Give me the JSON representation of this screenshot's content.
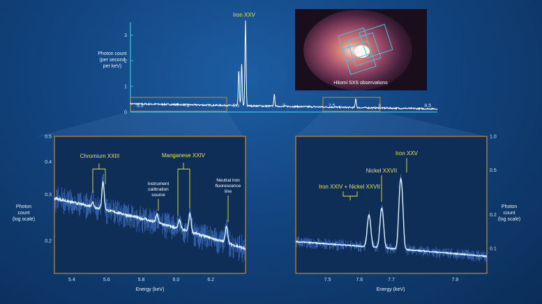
{
  "inset": {
    "caption": "Hitomi SXS observations"
  },
  "chart_data": [
    {
      "type": "line",
      "panel": "overview",
      "ylabel_lines": [
        "Photon count",
        "(per second",
        "per keV)"
      ],
      "annotation": "Iron XXV",
      "x_ticks": [
        "5.5",
        "6",
        "6.5",
        "7",
        "7.5",
        "8",
        "8.5"
      ],
      "y_ticks": [
        "0",
        "1",
        "2",
        "3"
      ],
      "xlim": [
        5.4,
        8.6
      ],
      "ylim": [
        0,
        3.5
      ],
      "peaks": [
        {
          "x": 6.53,
          "y": 1.4
        },
        {
          "x": 6.56,
          "y": 1.6
        },
        {
          "x": 6.6,
          "y": 3.3
        },
        {
          "x": 6.9,
          "y": 0.45
        },
        {
          "x": 7.75,
          "y": 0.35
        }
      ],
      "continuum": {
        "x": [
          5.4,
          8.6
        ],
        "y": [
          0.32,
          0.12
        ]
      },
      "zoom_boxes": [
        [
          5.4,
          6.4
        ],
        [
          7.4,
          8.0
        ]
      ]
    },
    {
      "type": "line",
      "panel": "zoom-left",
      "xlabel": "Energy (keV)",
      "ylabel_lines": [
        "Photon",
        "count",
        "(log scale)"
      ],
      "scale": "log",
      "xlim": [
        5.3,
        6.4
      ],
      "ylim": [
        0.15,
        0.5
      ],
      "x_ticks": [
        "5.4",
        "5.6",
        "5.8",
        "6.0",
        "6.2"
      ],
      "y_ticks": [
        "0.5",
        "0.4",
        "0.3",
        "0.2"
      ],
      "continuum": {
        "x": [
          5.3,
          6.4
        ],
        "y": [
          0.29,
          0.186
        ]
      },
      "lines": [
        {
          "x": 5.52,
          "peak": 0.28
        },
        {
          "x": 5.58,
          "peak": 0.335
        },
        {
          "x": 5.82,
          "peak": 0.243
        },
        {
          "x": 5.89,
          "peak": 0.252
        },
        {
          "x": 6.02,
          "peak": 0.24
        },
        {
          "x": 6.08,
          "peak": 0.255
        },
        {
          "x": 6.29,
          "peak": 0.228
        }
      ],
      "annotations": [
        "Chromium XXIII",
        "Manganese XXIV"
      ],
      "labels_multiline": [
        [
          "Instrument",
          "calibration",
          "source"
        ],
        [
          "Neutral iron",
          "fluorescence",
          "line"
        ]
      ]
    },
    {
      "type": "line",
      "panel": "zoom-right",
      "xlabel": "Energy (keV)",
      "ylabel_lines": [
        "Photon",
        "count",
        "(log scale)"
      ],
      "scale": "log",
      "xlim": [
        7.4,
        8.0
      ],
      "ylim": [
        0.06,
        1.0
      ],
      "x_ticks": [
        "7.5",
        "7.6",
        "7.7",
        "7.9"
      ],
      "y_ticks": [
        "1.0",
        "0.5",
        "0.2",
        "0.1"
      ],
      "continuum": {
        "x": [
          7.4,
          8.0
        ],
        "y": [
          0.115,
          0.085
        ]
      },
      "lines": [
        {
          "x": 7.63,
          "peak": 0.2
        },
        {
          "x": 7.67,
          "peak": 0.23
        },
        {
          "x": 7.73,
          "peak": 0.42
        }
      ],
      "annotations": [
        "Iron XXIV + Nickel XXVII",
        "Nickel XXVII",
        "Iron XXV"
      ]
    }
  ],
  "colors": {
    "axis": "#3bc6df",
    "box": "#c88a2e",
    "annotation": "#e8e24a",
    "trace": "#ffffff",
    "noise": "#4a7fe0"
  }
}
